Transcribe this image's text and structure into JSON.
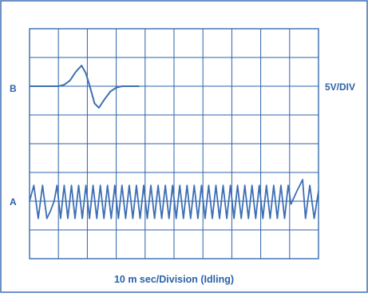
{
  "chart_data": {
    "type": "line",
    "title": "",
    "xlabel": "10 m sec/Division (Idling)",
    "ylabel": "",
    "volts_per_division_label": "5V/DIV",
    "grid": true,
    "grid_divisions": {
      "x": 10,
      "y": 8
    },
    "series": [
      {
        "name": "B",
        "x": [
          0,
          0.5,
          1.0,
          1.2,
          1.4,
          1.6,
          1.8,
          1.95,
          2.1,
          2.25,
          2.4,
          2.6,
          2.8,
          3.0,
          3.2,
          3.5,
          3.8
        ],
        "y": [
          6,
          6,
          6,
          6.05,
          6.2,
          6.5,
          6.72,
          6.45,
          5.95,
          5.4,
          5.25,
          5.55,
          5.82,
          5.95,
          6,
          6,
          6
        ]
      },
      {
        "name": "A",
        "description_of_pattern": "repeating sawtooth pulses, about 4 per division, amplitude about 1.2 divisions, with smooth transient bumps near the start and the end",
        "y_low": 1.4,
        "y_high": 2.55,
        "baseline": 2.0
      }
    ],
    "colors": {
      "trace": "#3d6fb4",
      "grid": "#2a62a8",
      "frame": "#3d6fb4"
    }
  }
}
